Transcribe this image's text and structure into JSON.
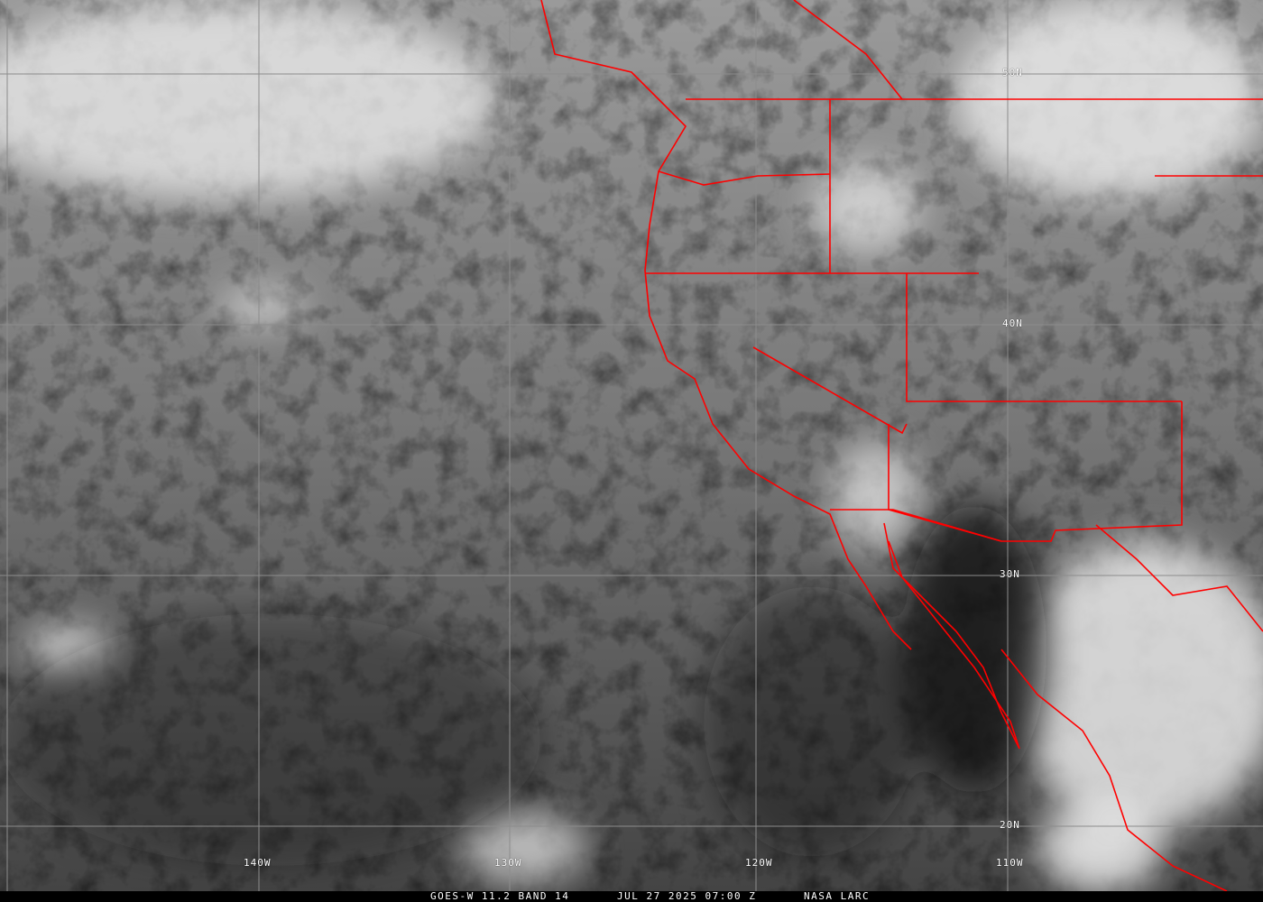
{
  "image": {
    "type": "infrared satellite image",
    "border_color": "#ff0000",
    "grid_color": "#8c8c8c"
  },
  "grid": {
    "latitudes": [
      "50N",
      "40N",
      "30N",
      "20N"
    ],
    "longitudes": [
      "140W",
      "130W",
      "120W",
      "110W"
    ]
  },
  "caption": {
    "satellite": "GOES-W 11.2 BAND 14",
    "datetime": "JUL 27 2025 07:00 Z",
    "source": "NASA LARC"
  }
}
